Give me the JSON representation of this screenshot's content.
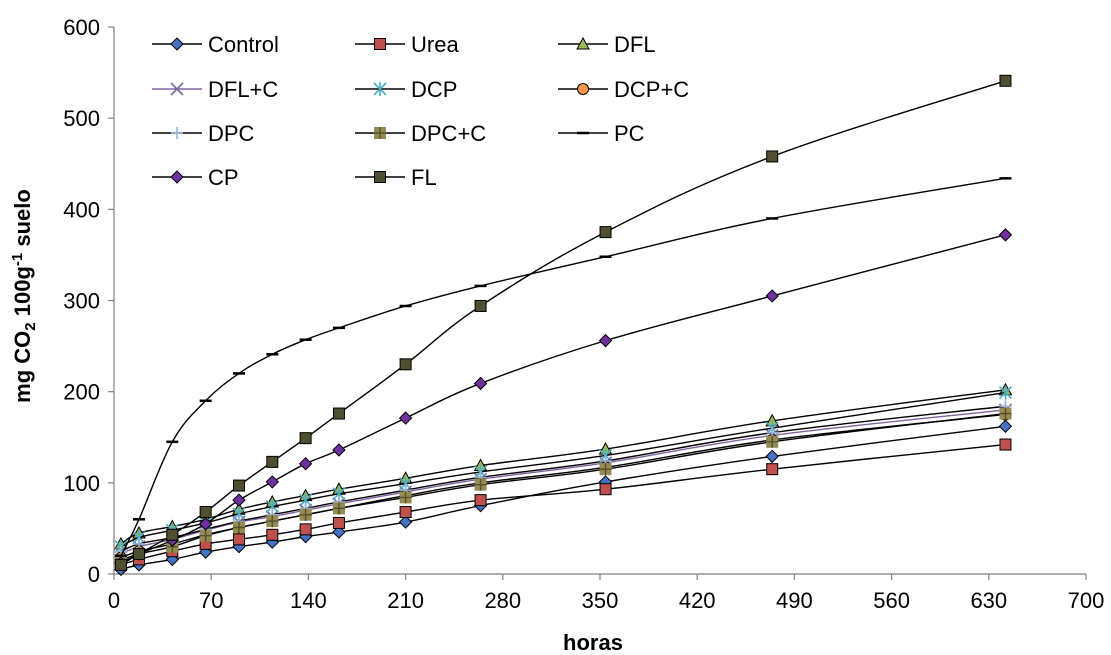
{
  "chart_data": {
    "type": "line",
    "xlabel": "horas",
    "ylabel_parts": [
      "mg CO",
      "2",
      " 100g",
      "-1",
      " suelo"
    ],
    "xlim": [
      0,
      700
    ],
    "ylim": [
      0,
      600
    ],
    "xticks": [
      0,
      70,
      140,
      210,
      280,
      350,
      420,
      490,
      560,
      630,
      700
    ],
    "yticks": [
      0,
      100,
      200,
      300,
      400,
      500,
      600
    ],
    "grid": false,
    "legend_position": "top-left",
    "x": [
      5,
      18,
      42,
      66,
      90,
      114,
      138,
      162,
      210,
      264,
      354,
      474,
      642
    ],
    "series": [
      {
        "name": "Control",
        "color": "#4472C4",
        "line": "#000000",
        "marker": "diamond",
        "values": [
          5,
          10,
          16,
          24,
          30,
          35,
          41,
          46,
          57,
          75,
          101,
          129,
          162
        ]
      },
      {
        "name": "Urea",
        "color": "#C0504D",
        "line": "#000000",
        "marker": "square",
        "values": [
          10,
          16,
          25,
          33,
          38,
          43,
          49,
          56,
          68,
          81,
          93,
          115,
          142
        ]
      },
      {
        "name": "DFL",
        "color": "#9BBB59",
        "line": "#000000",
        "marker": "triangle",
        "values": [
          33,
          45,
          52,
          60,
          71,
          79,
          86,
          93,
          105,
          119,
          137,
          168,
          202
        ]
      },
      {
        "name": "DFL+C",
        "color": "#8064A2",
        "line": "#8064A2",
        "marker": "x",
        "values": [
          22,
          30,
          38,
          48,
          57,
          63,
          70,
          77,
          90,
          104,
          122,
          152,
          180
        ]
      },
      {
        "name": "DCP",
        "color": "#4BACC6",
        "line": "#000000",
        "marker": "star",
        "values": [
          30,
          40,
          48,
          56,
          66,
          74,
          81,
          88,
          99,
          112,
          130,
          160,
          199
        ]
      },
      {
        "name": "DCP+C",
        "color": "#F79646",
        "line": "#000000",
        "marker": "circle",
        "values": [
          18,
          25,
          33,
          43,
          51,
          58,
          65,
          72,
          86,
          100,
          117,
          147,
          175
        ]
      },
      {
        "name": "DPC",
        "color": "#95B3D7",
        "line": "#000000",
        "marker": "plus",
        "values": [
          25,
          33,
          40,
          49,
          58,
          65,
          72,
          79,
          92,
          106,
          124,
          155,
          184
        ]
      },
      {
        "name": "DPC+C",
        "color": "#948A54",
        "line": "#000000",
        "marker": "plus-square",
        "values": [
          15,
          22,
          30,
          42,
          51,
          58,
          65,
          72,
          84,
          98,
          115,
          145,
          176
        ]
      },
      {
        "name": "PC",
        "color": "#000000",
        "line": "#000000",
        "marker": "dash",
        "values": [
          20,
          60,
          145,
          190,
          220,
          241,
          257,
          270,
          294,
          316,
          348,
          390,
          434
        ]
      },
      {
        "name": "CP",
        "color": "#7030A0",
        "line": "#000000",
        "marker": "diamond",
        "values": [
          12,
          22,
          37,
          55,
          81,
          101,
          121,
          136,
          171,
          209,
          256,
          305,
          372
        ]
      },
      {
        "name": "FL",
        "color": "#4F4F2F",
        "line": "#000000",
        "marker": "square",
        "values": [
          10,
          22,
          43,
          68,
          97,
          123,
          149,
          176,
          230,
          294,
          375,
          458,
          541
        ]
      }
    ]
  }
}
